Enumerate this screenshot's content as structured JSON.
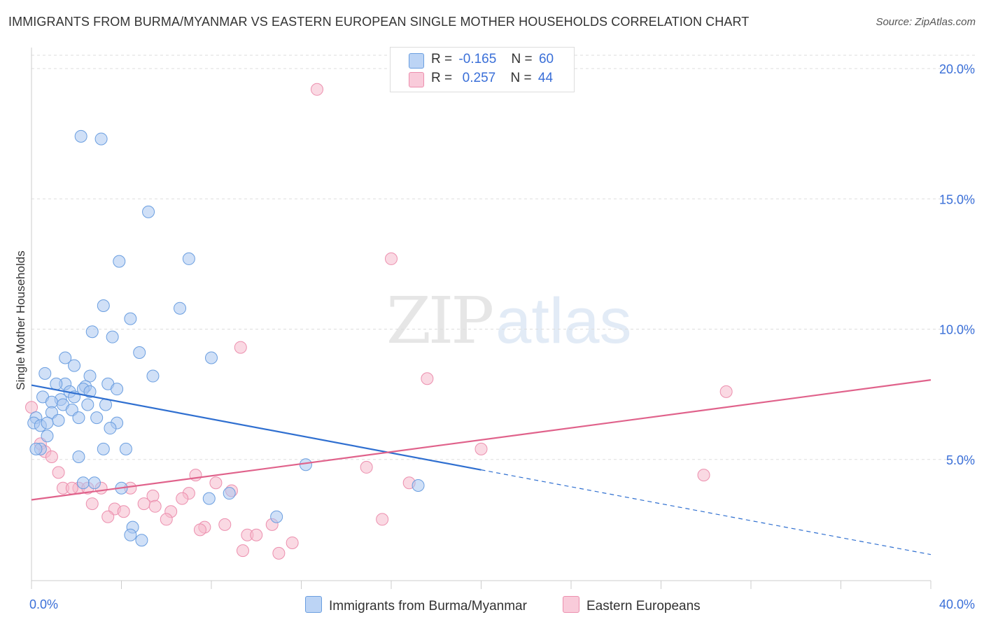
{
  "title": "IMMIGRANTS FROM BURMA/MYANMAR VS EASTERN EUROPEAN SINGLE MOTHER HOUSEHOLDS CORRELATION CHART",
  "source": "Source: ZipAtlas.com",
  "watermark": {
    "zip": "ZIP",
    "atlas": "atlas"
  },
  "legend": {
    "series1": {
      "r_label": "R =",
      "r_value": "-0.165",
      "n_label": "N =",
      "n_value": "60"
    },
    "series2": {
      "r_label": "R =",
      "r_value": " 0.257",
      "n_label": "N =",
      "n_value": "44"
    }
  },
  "colors": {
    "blue_fill": "#a9c7f0",
    "blue_stroke": "#6a9ee0",
    "blue_line": "#2f6fd0",
    "pink_fill": "#f6b9cc",
    "pink_stroke": "#ec8fae",
    "pink_line": "#e0628b",
    "tick_label": "#3a6fd8",
    "grid": "#dddddd"
  },
  "chart_data": {
    "type": "scatter",
    "title": "IMMIGRANTS FROM BURMA/MYANMAR VS EASTERN EUROPEAN SINGLE MOTHER HOUSEHOLDS CORRELATION CHART",
    "xlabel": "",
    "ylabel": "Single Mother Households",
    "xlim": [
      0,
      40
    ],
    "ylim": [
      0,
      20.5
    ],
    "x_tick_labels": [
      "0.0%",
      "40.0%"
    ],
    "y_ticks": [
      5,
      10,
      15,
      20
    ],
    "y_tick_labels": [
      "5.0%",
      "10.0%",
      "15.0%",
      "20.0%"
    ],
    "grid": true,
    "series": [
      {
        "name": "Immigrants from Burma/Myanmar",
        "color": "blue",
        "points": [
          [
            2.2,
            17.4
          ],
          [
            3.1,
            17.3
          ],
          [
            5.2,
            14.5
          ],
          [
            3.9,
            12.6
          ],
          [
            7.0,
            12.7
          ],
          [
            3.2,
            10.9
          ],
          [
            6.6,
            10.8
          ],
          [
            4.4,
            10.4
          ],
          [
            2.7,
            9.9
          ],
          [
            3.6,
            9.7
          ],
          [
            4.8,
            9.1
          ],
          [
            8.0,
            8.9
          ],
          [
            1.5,
            8.9
          ],
          [
            1.9,
            8.6
          ],
          [
            0.6,
            8.3
          ],
          [
            2.6,
            8.2
          ],
          [
            5.4,
            8.2
          ],
          [
            3.4,
            7.9
          ],
          [
            3.8,
            7.7
          ],
          [
            1.5,
            7.9
          ],
          [
            2.4,
            7.8
          ],
          [
            1.1,
            7.9
          ],
          [
            1.7,
            7.6
          ],
          [
            2.3,
            7.7
          ],
          [
            0.5,
            7.4
          ],
          [
            1.3,
            7.3
          ],
          [
            1.9,
            7.4
          ],
          [
            0.9,
            7.2
          ],
          [
            1.4,
            7.1
          ],
          [
            2.5,
            7.1
          ],
          [
            3.3,
            7.1
          ],
          [
            1.8,
            6.9
          ],
          [
            0.9,
            6.8
          ],
          [
            0.2,
            6.6
          ],
          [
            2.1,
            6.6
          ],
          [
            2.9,
            6.6
          ],
          [
            1.2,
            6.5
          ],
          [
            0.1,
            6.4
          ],
          [
            0.4,
            6.3
          ],
          [
            0.7,
            6.4
          ],
          [
            3.8,
            6.4
          ],
          [
            3.5,
            6.2
          ],
          [
            0.7,
            5.9
          ],
          [
            3.2,
            5.4
          ],
          [
            4.2,
            5.4
          ],
          [
            0.4,
            5.4
          ],
          [
            2.1,
            5.1
          ],
          [
            12.2,
            4.8
          ],
          [
            2.3,
            4.1
          ],
          [
            2.8,
            4.1
          ],
          [
            4.0,
            3.9
          ],
          [
            17.2,
            4.0
          ],
          [
            7.9,
            3.5
          ],
          [
            8.8,
            3.7
          ],
          [
            10.9,
            2.8
          ],
          [
            4.5,
            2.4
          ],
          [
            4.4,
            2.1
          ],
          [
            4.9,
            1.9
          ],
          [
            0.2,
            5.4
          ],
          [
            2.6,
            7.6
          ]
        ],
        "trend": {
          "x1": 0,
          "y1": 7.85,
          "x2": 20,
          "y2": 4.6,
          "dashed_to_x": 40,
          "dashed_to_y": 1.35
        }
      },
      {
        "name": "Eastern Europeans",
        "color": "pink",
        "points": [
          [
            12.7,
            19.2
          ],
          [
            16.0,
            12.7
          ],
          [
            9.3,
            9.3
          ],
          [
            17.6,
            8.1
          ],
          [
            30.9,
            7.6
          ],
          [
            0.0,
            7.0
          ],
          [
            0.4,
            5.6
          ],
          [
            0.6,
            5.3
          ],
          [
            0.9,
            5.1
          ],
          [
            1.2,
            4.5
          ],
          [
            20.0,
            5.4
          ],
          [
            14.9,
            4.7
          ],
          [
            29.9,
            4.4
          ],
          [
            7.3,
            4.4
          ],
          [
            8.2,
            4.1
          ],
          [
            16.8,
            4.1
          ],
          [
            1.4,
            3.9
          ],
          [
            2.1,
            3.9
          ],
          [
            2.5,
            3.9
          ],
          [
            3.1,
            3.9
          ],
          [
            4.4,
            3.9
          ],
          [
            8.9,
            3.8
          ],
          [
            7.0,
            3.7
          ],
          [
            5.4,
            3.6
          ],
          [
            6.7,
            3.5
          ],
          [
            2.7,
            3.3
          ],
          [
            3.7,
            3.1
          ],
          [
            4.1,
            3.0
          ],
          [
            5.0,
            3.3
          ],
          [
            5.5,
            3.2
          ],
          [
            6.2,
            3.0
          ],
          [
            3.4,
            2.8
          ],
          [
            6.0,
            2.7
          ],
          [
            15.6,
            2.7
          ],
          [
            10.7,
            2.5
          ],
          [
            7.7,
            2.4
          ],
          [
            8.6,
            2.5
          ],
          [
            7.5,
            2.3
          ],
          [
            9.6,
            2.1
          ],
          [
            10.0,
            2.1
          ],
          [
            11.6,
            1.8
          ],
          [
            9.4,
            1.5
          ],
          [
            11.0,
            1.4
          ],
          [
            1.8,
            3.9
          ]
        ],
        "trend": {
          "x1": 0,
          "y1": 3.45,
          "x2": 40,
          "y2": 8.05
        }
      }
    ]
  }
}
